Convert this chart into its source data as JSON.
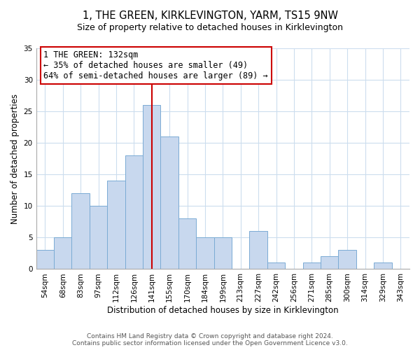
{
  "title": "1, THE GREEN, KIRKLEVINGTON, YARM, TS15 9NW",
  "subtitle": "Size of property relative to detached houses in Kirklevington",
  "xlabel": "Distribution of detached houses by size in Kirklevington",
  "ylabel": "Number of detached properties",
  "bar_labels": [
    "54sqm",
    "68sqm",
    "83sqm",
    "97sqm",
    "112sqm",
    "126sqm",
    "141sqm",
    "155sqm",
    "170sqm",
    "184sqm",
    "199sqm",
    "213sqm",
    "227sqm",
    "242sqm",
    "256sqm",
    "271sqm",
    "285sqm",
    "300sqm",
    "314sqm",
    "329sqm",
    "343sqm"
  ],
  "bar_values": [
    3,
    5,
    12,
    10,
    14,
    18,
    26,
    21,
    8,
    5,
    5,
    0,
    6,
    1,
    0,
    1,
    2,
    3,
    0,
    1,
    0
  ],
  "bar_color": "#c8d8ee",
  "bar_edge_color": "#7aabd4",
  "vline_x": 6.0,
  "vline_color": "#cc0000",
  "annotation_line1": "1 THE GREEN: 132sqm",
  "annotation_line2": "← 35% of detached houses are smaller (49)",
  "annotation_line3": "64% of semi-detached houses are larger (89) →",
  "annotation_box_edge": "#cc0000",
  "annotation_box_bg": "#ffffff",
  "ylim": [
    0,
    35
  ],
  "yticks": [
    0,
    5,
    10,
    15,
    20,
    25,
    30,
    35
  ],
  "footer1": "Contains HM Land Registry data © Crown copyright and database right 2024.",
  "footer2": "Contains public sector information licensed under the Open Government Licence v3.0.",
  "title_fontsize": 10.5,
  "subtitle_fontsize": 9,
  "axis_label_fontsize": 8.5,
  "tick_fontsize": 7.5,
  "annotation_fontsize": 8.5,
  "footer_fontsize": 6.5
}
